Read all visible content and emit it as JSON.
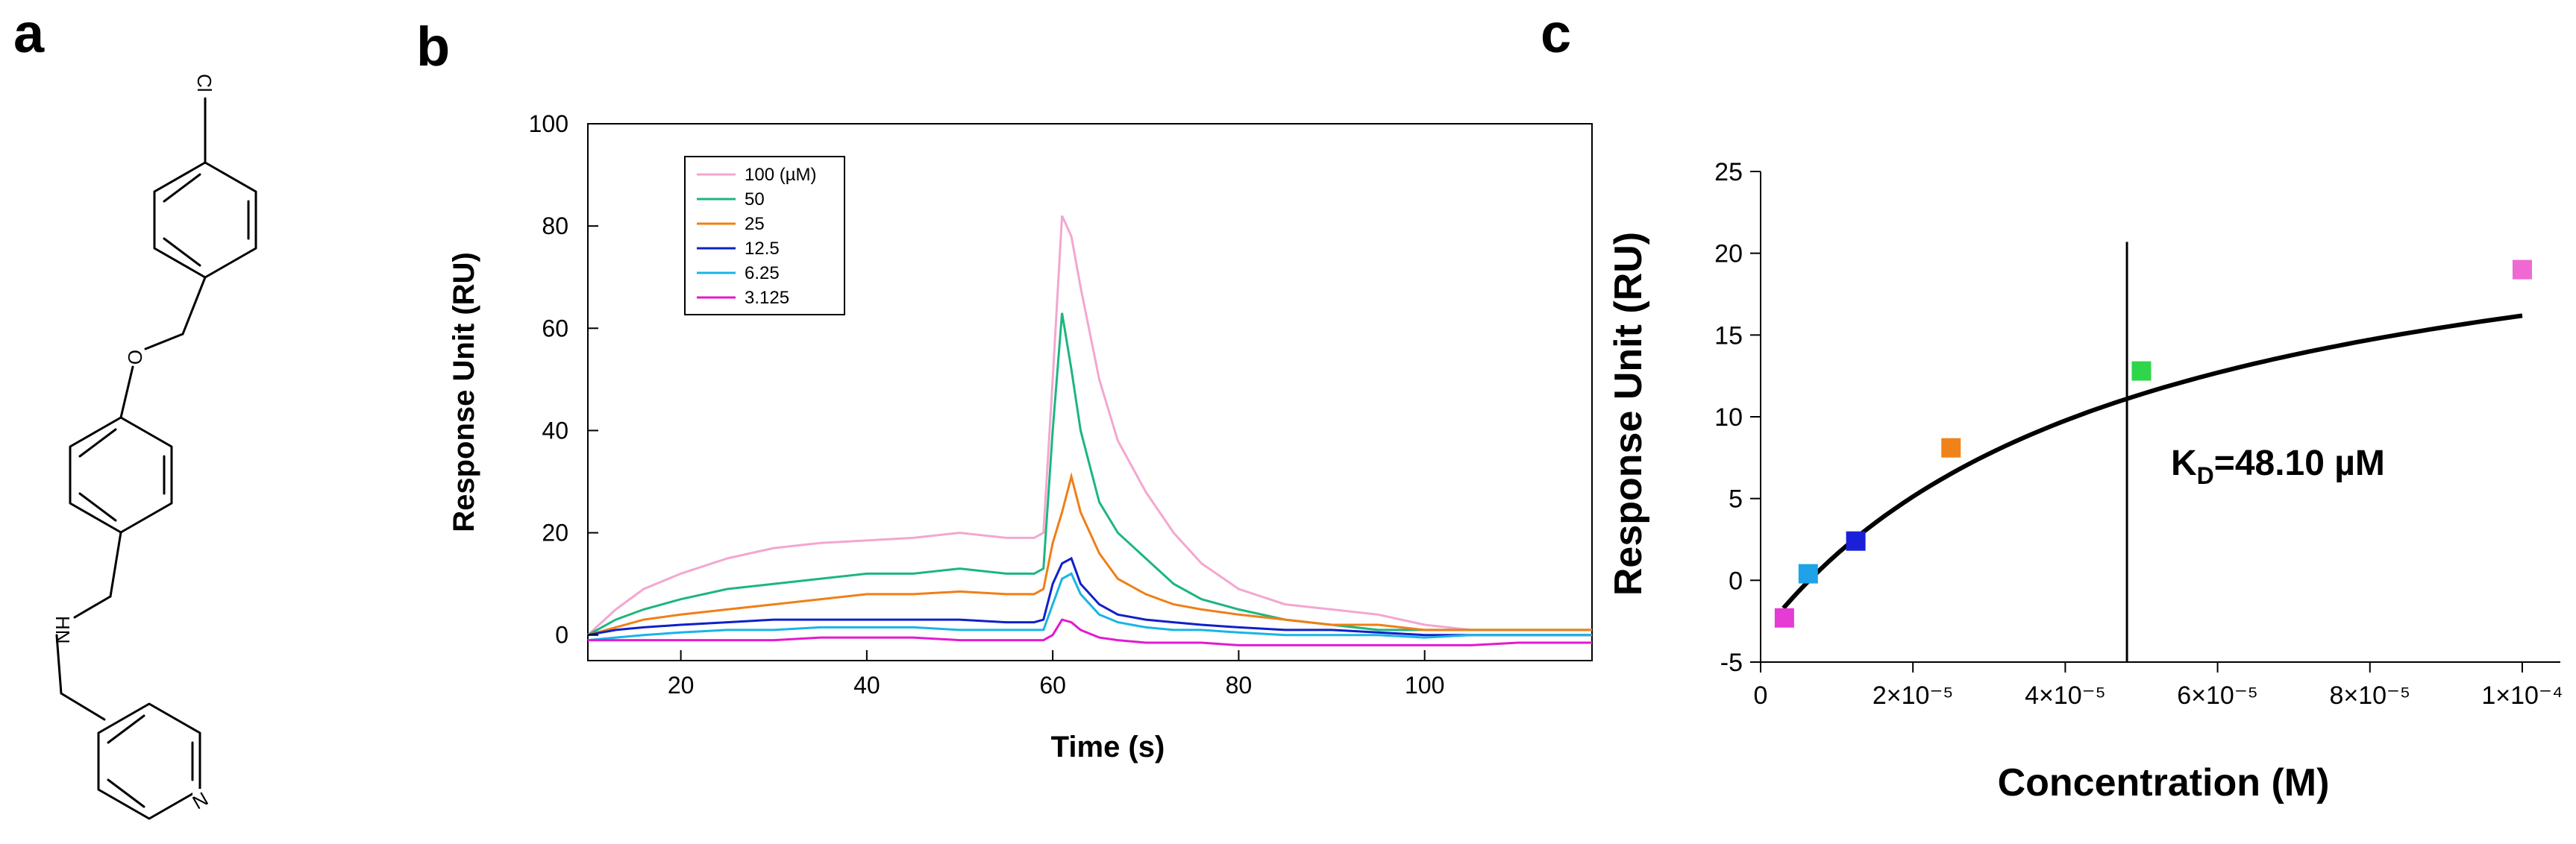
{
  "panel_labels": [
    "a",
    "b",
    "c"
  ],
  "structure": {
    "atoms": {
      "chlorine": "Cl",
      "oxygen": "O",
      "amine": "HN",
      "nitrogen": "N"
    }
  },
  "chart_data": [
    {
      "type": "line",
      "title": "",
      "xlabel": "Time (s)",
      "ylabel": "Response Unit (RU)",
      "xlim": [
        10,
        118
      ],
      "ylim": [
        -5,
        100
      ],
      "xticks": [
        20,
        40,
        60,
        80,
        100
      ],
      "yticks": [
        0,
        20,
        40,
        60,
        80,
        100
      ],
      "legend_title": "",
      "series": [
        {
          "name": "100 (µM)",
          "color": "#f4a6d0",
          "x": [
            10,
            13,
            16,
            20,
            25,
            30,
            35,
            40,
            45,
            50,
            55,
            58,
            59,
            60,
            61,
            62,
            63,
            65,
            67,
            70,
            73,
            76,
            80,
            85,
            90,
            95,
            100,
            105,
            110,
            118
          ],
          "y": [
            0,
            5,
            9,
            12,
            15,
            17,
            18,
            18.5,
            19,
            20,
            19,
            19,
            20,
            50,
            82,
            78,
            68,
            50,
            38,
            28,
            20,
            14,
            9,
            6,
            5,
            4,
            2,
            1,
            1,
            1
          ]
        },
        {
          "name": "50",
          "color": "#1cb67f",
          "x": [
            10,
            13,
            16,
            20,
            25,
            30,
            35,
            40,
            45,
            50,
            55,
            58,
            59,
            60,
            61,
            62,
            63,
            65,
            67,
            70,
            73,
            76,
            80,
            85,
            90,
            95,
            100,
            105,
            110,
            118
          ],
          "y": [
            0,
            3,
            5,
            7,
            9,
            10,
            11,
            12,
            12,
            13,
            12,
            12,
            13,
            40,
            63,
            52,
            40,
            26,
            20,
            15,
            10,
            7,
            5,
            3,
            2,
            1,
            1,
            1,
            1,
            1
          ]
        },
        {
          "name": "25",
          "color": "#f07f17",
          "x": [
            10,
            13,
            16,
            20,
            25,
            30,
            35,
            40,
            45,
            50,
            55,
            58,
            59,
            60,
            61,
            62,
            63,
            65,
            67,
            70,
            73,
            76,
            80,
            85,
            90,
            95,
            100,
            105,
            110,
            118
          ],
          "y": [
            0,
            1.5,
            3,
            4,
            5,
            6,
            7,
            8,
            8,
            8.5,
            8,
            8,
            9,
            18,
            24,
            31,
            24,
            16,
            11,
            8,
            6,
            5,
            4,
            3,
            2,
            2,
            1,
            1,
            1,
            1
          ]
        },
        {
          "name": "12.5",
          "color": "#1020c8",
          "x": [
            10,
            13,
            16,
            20,
            25,
            30,
            35,
            40,
            45,
            50,
            55,
            58,
            59,
            60,
            61,
            62,
            63,
            65,
            67,
            70,
            73,
            76,
            80,
            85,
            90,
            95,
            100,
            105,
            110,
            118
          ],
          "y": [
            0,
            1,
            1.5,
            2,
            2.5,
            3,
            3,
            3,
            3,
            3,
            2.5,
            2.5,
            3,
            10,
            14,
            15,
            10,
            6,
            4,
            3,
            2.5,
            2,
            1.5,
            1,
            1,
            0.5,
            0,
            0,
            0,
            0
          ]
        },
        {
          "name": "6.25",
          "color": "#19b4e6",
          "x": [
            10,
            13,
            16,
            20,
            25,
            30,
            35,
            40,
            45,
            50,
            55,
            58,
            59,
            60,
            61,
            62,
            63,
            65,
            67,
            70,
            73,
            76,
            80,
            85,
            90,
            95,
            100,
            105,
            110,
            118
          ],
          "y": [
            -1,
            -0.5,
            0,
            0.5,
            1,
            1,
            1.5,
            1.5,
            1.5,
            1,
            1,
            1,
            1,
            6,
            11,
            12,
            8,
            4,
            2.5,
            1.5,
            1,
            1,
            0.5,
            0,
            0,
            0,
            -0.5,
            0,
            0,
            0
          ]
        },
        {
          "name": "3.125",
          "color": "#e21ad0",
          "x": [
            10,
            13,
            16,
            20,
            25,
            30,
            35,
            40,
            45,
            50,
            55,
            58,
            59,
            60,
            61,
            62,
            63,
            65,
            67,
            70,
            73,
            76,
            80,
            85,
            90,
            95,
            100,
            105,
            110,
            118
          ],
          "y": [
            -1,
            -1,
            -1,
            -1,
            -1,
            -1,
            -0.5,
            -0.5,
            -0.5,
            -1,
            -1,
            -1,
            -1,
            0,
            3,
            2.5,
            1,
            -0.5,
            -1,
            -1.5,
            -1.5,
            -1.5,
            -2,
            -2,
            -2,
            -2,
            -2,
            -2,
            -1.5,
            -1.5
          ]
        }
      ]
    },
    {
      "type": "scatter",
      "title": "",
      "xlabel": "Concentration (M)",
      "ylabel": "Response Unit (RU)",
      "xlim": [
        0,
        0.000105
      ],
      "ylim": [
        -5,
        25
      ],
      "xtick_values": [
        0,
        2e-05,
        4e-05,
        6e-05,
        8e-05,
        0.0001
      ],
      "xtick_labels": [
        "0",
        "2×10⁻⁵",
        "4×10⁻⁵",
        "6×10⁻⁵",
        "8×10⁻⁵",
        "1×10⁻⁴"
      ],
      "yticks": [
        -5,
        0,
        5,
        10,
        15,
        20,
        25
      ],
      "points": [
        {
          "x": 3.125e-06,
          "y": -2.3,
          "color": "#e63bd4"
        },
        {
          "x": 6.25e-06,
          "y": 0.4,
          "color": "#1fa2e8"
        },
        {
          "x": 1.25e-05,
          "y": 2.4,
          "color": "#1a20d8"
        },
        {
          "x": 2.5e-05,
          "y": 8.1,
          "color": "#f0821a"
        },
        {
          "x": 5e-05,
          "y": 12.8,
          "color": "#2fd64a"
        },
        {
          "x": 0.0001,
          "y": 19.0,
          "color": "#ee6ad2"
        }
      ],
      "fit": {
        "model": "steady-state affinity",
        "Rmax": 29,
        "KD": 4.81e-05,
        "offset": -3.4
      },
      "kd_line_x": 4.81e-05,
      "annotation": {
        "prefix": "K",
        "subscript": "D",
        "suffix": "=48.10 µM"
      }
    }
  ]
}
